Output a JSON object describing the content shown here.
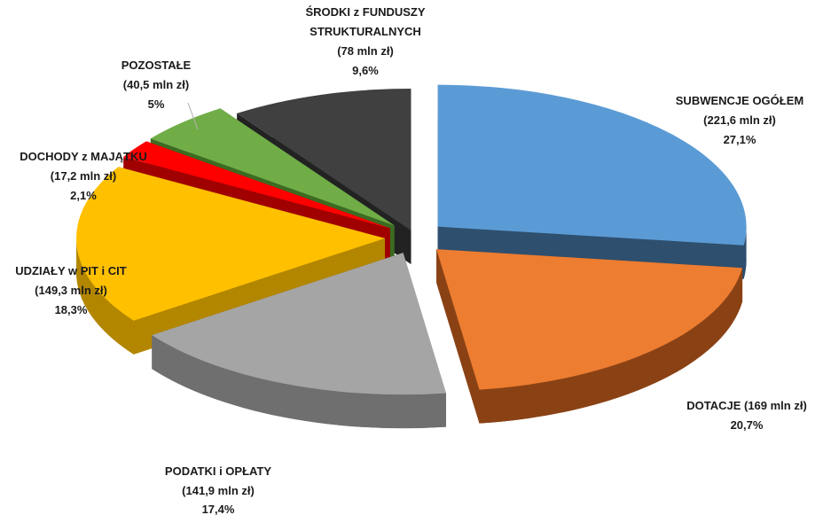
{
  "chart_data": {
    "type": "pie",
    "style": "3d-exploded",
    "legend": "none",
    "slices": [
      {
        "label": "SUBWENCJE OGÓŁEM",
        "amount": "(221,6 mln zł)",
        "percent": "27,1%",
        "value": 221.6,
        "color": "#5b9bd5",
        "side_color": "#2e4f6e"
      },
      {
        "label": "DOTACJE (169 mln zł)",
        "amount": "",
        "percent": "20,7%",
        "value": 169,
        "color": "#ed7d31",
        "side_color": "#8a4215"
      },
      {
        "label": "PODATKI i OPŁATY",
        "amount": "(141,9 mln zł)",
        "percent": "17,4%",
        "value": 141.9,
        "color": "#a5a5a5",
        "side_color": "#6f6f6f"
      },
      {
        "label": "UDZIAŁY w PIT i CIT",
        "amount": "(149,3 mln zł)",
        "percent": "18,3%",
        "value": 149.3,
        "color": "#ffc000",
        "side_color": "#b38600"
      },
      {
        "label": "DOCHODY z MAJĄTKU",
        "amount": "(17,2 mln zł)",
        "percent": "2,1%",
        "value": 17.2,
        "color": "#ff0000",
        "side_color": "#a00000"
      },
      {
        "label": "POZOSTAŁE",
        "amount": "(40,5 mln zł)",
        "percent": "5%",
        "value": 40.5,
        "color": "#70ad47",
        "side_color": "#3d6b22"
      },
      {
        "label": "ŚRODKI z FUNDUSZY STRUKTURALNYCH",
        "label_line1": "ŚRODKI z FUNDUSZY",
        "label_line2": "STRUKTURALNYCH",
        "amount": "(78 mln zł)",
        "percent": "9,6%",
        "value": 78,
        "color": "#404040",
        "side_color": "#222222"
      }
    ]
  }
}
